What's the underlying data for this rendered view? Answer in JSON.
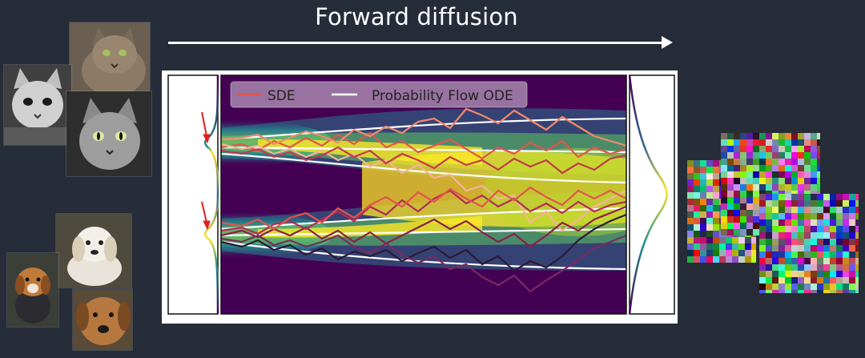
{
  "title": "Forward diffusion",
  "legend": {
    "sde_label": "SDE",
    "ode_label": "Probability Flow ODE",
    "sde_color": "#e2564b",
    "ode_color": "#ffffff"
  },
  "images": {
    "cats": [
      "cat-photo-1",
      "cat-photo-2",
      "cat-photo-3"
    ],
    "dogs": [
      "dog-photo-1",
      "dog-photo-2",
      "dog-photo-3"
    ]
  },
  "colors": {
    "background": "#262c38",
    "arrow": "#ffffff",
    "marker_arrow": "#e02020"
  },
  "diagram": {
    "data_modes": 2,
    "prior": "single gaussian",
    "colormap": "viridis"
  }
}
